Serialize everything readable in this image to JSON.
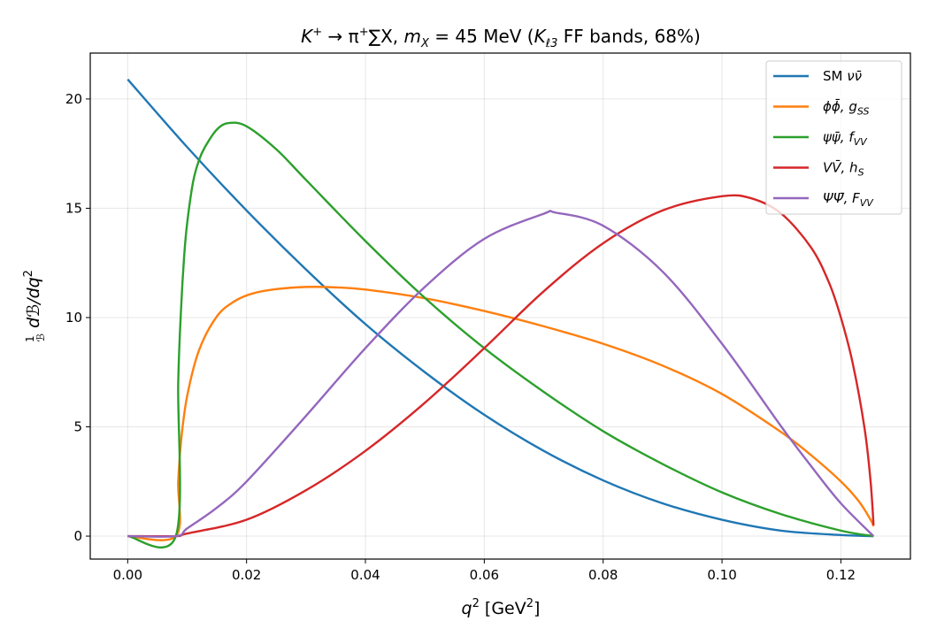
{
  "chart_data": {
    "type": "line",
    "title": "K⁺→π⁺∑X, m_X = 45 MeV  (K_ℓ3 FF bands, 68%)",
    "title_parts": {
      "lhs": "K",
      "lhs_sup": "+",
      "arrow": " → π",
      "pi_sup": "+",
      "sum": "∑X, ",
      "m": "m",
      "m_sub": "X",
      "m_val": " = 45 MeV  (",
      "ff": "K",
      "ff_sub": "ℓ3",
      "ff_tail": " FF bands, 68%)"
    },
    "xlabel_parts": {
      "q": "q",
      "q_sup": "2",
      "unit": " [GeV",
      "unit_sup": "2",
      "close": "]"
    },
    "ylabel_parts": {
      "frac_num": "1",
      "frac_den": "ℬ",
      "body": " dℬ/dq",
      "sup": "2"
    },
    "xlim": [
      -0.0063,
      0.1317
    ],
    "ylim": [
      -1.05,
      22.1
    ],
    "xticks": [
      0.0,
      0.02,
      0.04,
      0.06,
      0.08,
      0.1,
      0.12
    ],
    "xtick_labels": [
      "0.00",
      "0.02",
      "0.04",
      "0.06",
      "0.08",
      "0.10",
      "0.12"
    ],
    "yticks": [
      0,
      5,
      10,
      15,
      20
    ],
    "ytick_labels": [
      "0",
      "5",
      "10",
      "15",
      "20"
    ],
    "grid": true,
    "legend_position": "top-right",
    "series": [
      {
        "name": "SM νν̄",
        "legend_parts": [
          {
            "t": "SM ",
            "i": false
          },
          {
            "t": "νν̄",
            "i": true
          }
        ],
        "color": "#1f77b4",
        "x": [
          0.0,
          0.01,
          0.02,
          0.03,
          0.04,
          0.05,
          0.06,
          0.07,
          0.08,
          0.09,
          0.1,
          0.11,
          0.12,
          0.1255
        ],
        "y": [
          20.9,
          17.8,
          14.9,
          12.2,
          9.7,
          7.5,
          5.55,
          3.9,
          2.55,
          1.5,
          0.75,
          0.25,
          0.05,
          0.0
        ]
      },
      {
        "name": "ϕϕ̄, g_SS",
        "legend_parts": [
          {
            "t": "ϕϕ̄,  g",
            "i": true
          },
          {
            "t": "SS",
            "i": true,
            "sub": true
          }
        ],
        "color": "#ff7f0e",
        "x": [
          0.0,
          0.0081,
          0.0085,
          0.009,
          0.01,
          0.012,
          0.015,
          0.018,
          0.021,
          0.025,
          0.03,
          0.035,
          0.04,
          0.05,
          0.06,
          0.07,
          0.08,
          0.09,
          0.1,
          0.11,
          0.115,
          0.12,
          0.123,
          0.125,
          0.1255
        ],
        "y": [
          0.0,
          0.0,
          2.5,
          4.4,
          6.4,
          8.5,
          10.05,
          10.75,
          11.1,
          11.3,
          11.4,
          11.38,
          11.28,
          10.88,
          10.3,
          9.6,
          8.8,
          7.8,
          6.5,
          4.75,
          3.7,
          2.5,
          1.6,
          0.75,
          0.45
        ]
      },
      {
        "name": "ψψ̄, f_VV",
        "legend_parts": [
          {
            "t": "ψψ̄,  f",
            "i": true
          },
          {
            "t": "VV",
            "i": true,
            "sub": true
          }
        ],
        "color": "#2ca02c",
        "x": [
          0.0,
          0.0081,
          0.0085,
          0.009,
          0.0095,
          0.01,
          0.011,
          0.012,
          0.013,
          0.015,
          0.017,
          0.02,
          0.025,
          0.03,
          0.04,
          0.05,
          0.06,
          0.07,
          0.08,
          0.09,
          0.1,
          0.11,
          0.12,
          0.1255
        ],
        "y": [
          0.0,
          0.0,
          7.0,
          10.5,
          12.8,
          14.3,
          16.2,
          17.2,
          17.8,
          18.6,
          18.9,
          18.75,
          17.7,
          16.3,
          13.5,
          10.9,
          8.6,
          6.6,
          4.8,
          3.3,
          2.0,
          1.0,
          0.25,
          0.0
        ]
      },
      {
        "name": "VV̄, h_S",
        "legend_parts": [
          {
            "t": "VV̄,  h",
            "i": true
          },
          {
            "t": "S",
            "i": true,
            "sub": true
          }
        ],
        "color": "#d62728",
        "x": [
          0.0,
          0.0081,
          0.01,
          0.02,
          0.03,
          0.04,
          0.05,
          0.06,
          0.07,
          0.08,
          0.09,
          0.1,
          0.105,
          0.11,
          0.115,
          0.118,
          0.12,
          0.122,
          0.124,
          0.125,
          0.1255
        ],
        "y": [
          0.0,
          0.0,
          0.12,
          0.75,
          2.1,
          3.9,
          6.1,
          8.6,
          11.2,
          13.4,
          14.9,
          15.55,
          15.45,
          14.75,
          13.2,
          11.6,
          10.0,
          7.9,
          4.9,
          2.5,
          0.5
        ]
      },
      {
        "name": "ΨΨ̄, F_VV",
        "legend_parts": [
          {
            "t": "ΨΨ̄,  F",
            "i": true
          },
          {
            "t": "VV",
            "i": true,
            "sub": true
          }
        ],
        "color": "#9467bd",
        "x": [
          0.0,
          0.0081,
          0.01,
          0.015,
          0.02,
          0.03,
          0.04,
          0.05,
          0.06,
          0.07,
          0.072,
          0.08,
          0.09,
          0.1,
          0.11,
          0.115,
          0.12,
          0.1255
        ],
        "y": [
          0.0,
          0.0,
          0.35,
          1.3,
          2.5,
          5.5,
          8.6,
          11.4,
          13.6,
          14.75,
          14.8,
          14.2,
          12.1,
          8.8,
          5.0,
          3.2,
          1.5,
          0.0
        ]
      }
    ]
  }
}
